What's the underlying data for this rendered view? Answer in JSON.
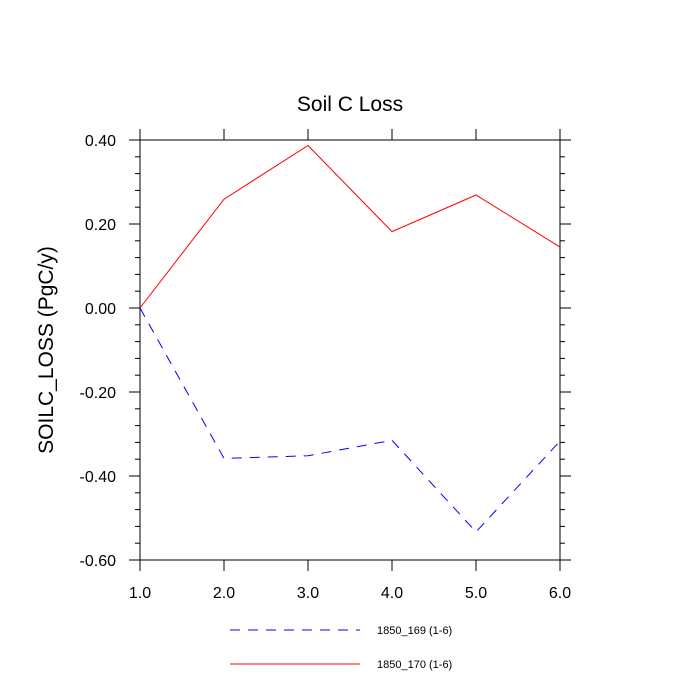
{
  "chart_data": {
    "type": "line",
    "title": "Soil C Loss",
    "xlabel": "",
    "ylabel": "SOILC_LOSS  (PgC/y)",
    "xlim": [
      1.0,
      6.0
    ],
    "ylim": [
      -0.6,
      0.4
    ],
    "x_ticks": [
      1.0,
      2.0,
      3.0,
      4.0,
      5.0,
      6.0
    ],
    "x_tick_labels": [
      "1.0",
      "2.0",
      "3.0",
      "4.0",
      "5.0",
      "6.0"
    ],
    "y_ticks": [
      -0.6,
      -0.4,
      -0.2,
      0.0,
      0.2,
      0.4
    ],
    "y_tick_labels": [
      "-0.60",
      "-0.40",
      "-0.20",
      "0.00",
      "0.20",
      "0.40"
    ],
    "x": [
      1,
      2,
      3,
      4,
      5,
      6
    ],
    "series": [
      {
        "name": "1850_169 (1-6)",
        "values": [
          0.0,
          -0.358,
          -0.352,
          -0.315,
          -0.533,
          -0.317
        ],
        "color": "#0000ff",
        "dash": "dashed"
      },
      {
        "name": "1850_170 (1-6)",
        "values": [
          0.0,
          0.259,
          0.387,
          0.182,
          0.269,
          0.145
        ],
        "color": "#ff0000",
        "dash": "solid"
      }
    ],
    "legend_position": "bottom-center",
    "grid": false
  }
}
